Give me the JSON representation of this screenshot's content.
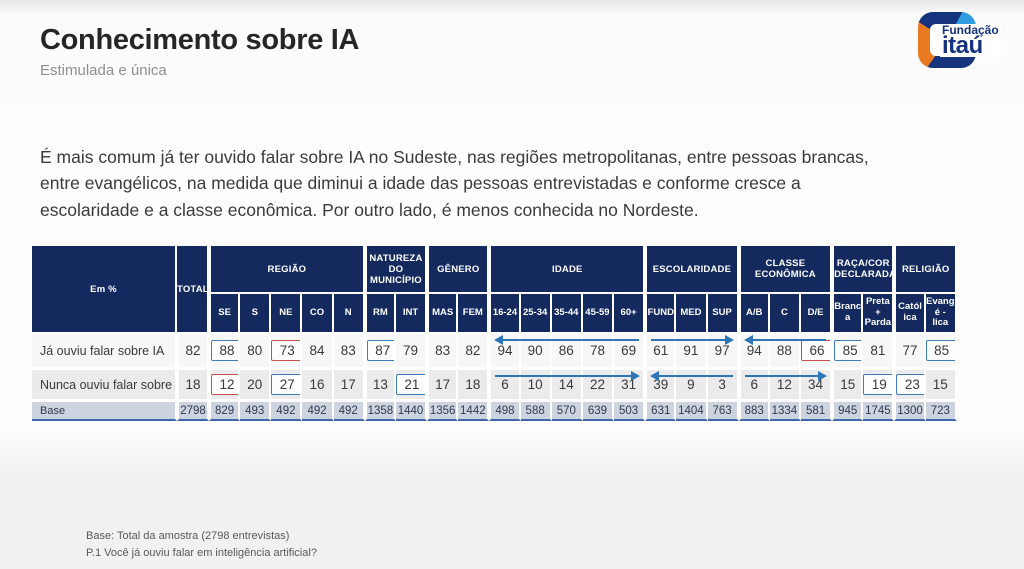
{
  "slide": {
    "title": "Conhecimento sobre IA",
    "subtitle": "Estimulada e única",
    "paragraph": "É mais comum já ter ouvido falar sobre IA no Sudeste, nas regiões metropolitanas, entre pessoas brancas, entre evangélicos, na medida que diminui a idade das pessoas entrevistadas e conforme cresce a escolaridade e a classe econômica. Por outro lado, é menos conhecida no Nordeste.",
    "footer_lines": [
      "Base: Total da amostra (2798 entrevistas)",
      "P.1 Você já ouviu falar em inteligência artificial?"
    ]
  },
  "logo": {
    "brand_top": "Fundação",
    "brand_bottom": "itaú"
  },
  "colors": {
    "header_navy": "#142a5f",
    "row_light": "#f7f7f8",
    "row_alt": "#ebebed",
    "base_row_bg": "#cdd3df",
    "base_row_line": "#3f67ad",
    "highlight_blue": "#3d7cb8",
    "highlight_red": "#c8504f",
    "arrow_blue": "#2e75b6",
    "logo_dark_blue": "#16337e",
    "logo_light_blue": "#2f9de0",
    "logo_orange": "#e87a22"
  },
  "table": {
    "corner_label": "Em %",
    "total_label": "TOTAL",
    "groups": [
      {
        "label": "REGIÃO",
        "cols": [
          "SE",
          "S",
          "NE",
          "CO",
          "N"
        ]
      },
      {
        "label": "NATUREZA DO MUNICÍPIO",
        "cols": [
          "RM",
          "INT"
        ]
      },
      {
        "label": "GÊNERO",
        "cols": [
          "MAS",
          "FEM"
        ]
      },
      {
        "label": "IDADE",
        "cols": [
          "16-24",
          "25-34",
          "35-44",
          "45-59",
          "60+"
        ]
      },
      {
        "label": "ESCOLARIDADE",
        "cols": [
          "FUND",
          "MED",
          "SUP"
        ]
      },
      {
        "label": "CLASSE ECONÔMICA",
        "cols": [
          "A/B",
          "C",
          "D/E"
        ]
      },
      {
        "label": "RAÇA/COR DECLARADA",
        "cols": [
          "Branca",
          "Preta + Parda"
        ]
      },
      {
        "label": "RELIGIÃO",
        "cols": [
          "Católi­ca",
          "Evangé - lica"
        ]
      }
    ],
    "rows": [
      {
        "label": "Já ouviu falar sobre IA",
        "total": "82",
        "values": [
          "88",
          "80",
          "73",
          "84",
          "83",
          "87",
          "79",
          "83",
          "82",
          "94",
          "90",
          "86",
          "78",
          "69",
          "61",
          "91",
          "97",
          "94",
          "88",
          "66",
          "85",
          "81",
          "77",
          "85"
        ],
        "highlights": {
          "0": "blue",
          "2": "red",
          "5": "blue",
          "19": "red",
          "20": "blue",
          "23": "blue"
        }
      },
      {
        "label": "Nunca ouviu falar sobre IA",
        "total": "18",
        "values": [
          "12",
          "20",
          "27",
          "16",
          "17",
          "13",
          "21",
          "17",
          "18",
          "6",
          "10",
          "14",
          "22",
          "31",
          "39",
          "9",
          "3",
          "6",
          "12",
          "34",
          "15",
          "19",
          "23",
          "15"
        ],
        "highlights": {
          "0": "red",
          "2": "blue",
          "6": "blue",
          "21": "blue",
          "22": "blue"
        }
      }
    ],
    "base_row": {
      "label": "Base",
      "total": "2798",
      "values": [
        "829",
        "493",
        "492",
        "492",
        "492",
        "1358",
        "1440",
        "1356",
        "1442",
        "498",
        "588",
        "570",
        "639",
        "503",
        "631",
        "1404",
        "763",
        "883",
        "1334",
        "581",
        "945",
        "1745",
        "1300",
        "723"
      ]
    },
    "arrows": [
      {
        "row": 0,
        "group": 3,
        "direction": "left"
      },
      {
        "row": 0,
        "group": 4,
        "direction": "right"
      },
      {
        "row": 0,
        "group": 5,
        "direction": "left"
      },
      {
        "row": 1,
        "group": 3,
        "direction": "right"
      },
      {
        "row": 1,
        "group": 4,
        "direction": "left"
      },
      {
        "row": 1,
        "group": 5,
        "direction": "right"
      }
    ]
  }
}
